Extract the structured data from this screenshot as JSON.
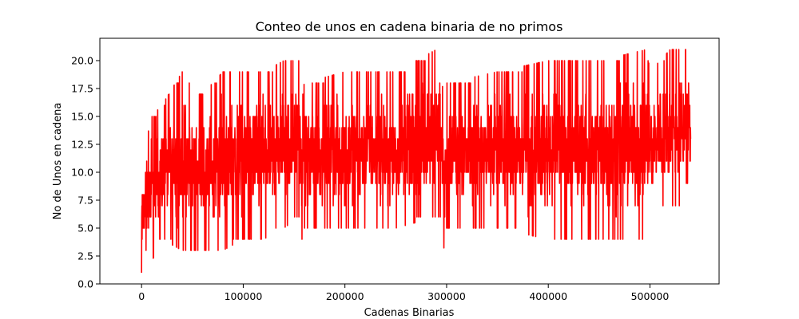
{
  "chart_data": {
    "type": "line",
    "title": "Conteo de unos en cadena binaria de no primos",
    "xlabel": "Cadenas Binarias",
    "ylabel": "No de Unos en cadena",
    "xlim": [
      -41000,
      568000
    ],
    "ylim": [
      0,
      22
    ],
    "x_ticks": [
      0,
      100000,
      200000,
      300000,
      400000,
      500000
    ],
    "y_ticks": [
      0.0,
      2.5,
      5.0,
      7.5,
      10.0,
      12.5,
      15.0,
      17.5,
      20.0
    ],
    "x_tick_labels": [
      "0",
      "100000",
      "200000",
      "300000",
      "400000",
      "500000"
    ],
    "y_tick_labels": [
      "0.0",
      "2.5",
      "5.0",
      "7.5",
      "10.0",
      "12.5",
      "15.0",
      "17.5",
      "20.0"
    ],
    "grid": false,
    "series": [
      {
        "color": "#ff0000",
        "x_range": [
          0,
          540000
        ],
        "envelope": {
          "x": [
            0,
            5000,
            10000,
            20000,
            40000,
            60000,
            80000,
            100000,
            120000,
            140000,
            155000,
            157000,
            160000,
            200000,
            250000,
            290000,
            294000,
            297000,
            300000,
            350000,
            400000,
            450000,
            497000,
            500000,
            520000,
            540000
          ],
          "max": [
            10,
            13,
            15,
            16,
            19,
            17,
            19,
            19,
            19,
            20,
            20,
            16,
            18,
            19,
            19,
            21,
            21,
            16,
            18,
            19,
            20,
            20,
            21,
            19,
            21,
            21
          ],
          "min": [
            1,
            3,
            2,
            4,
            3,
            3,
            3,
            4,
            4,
            5,
            6,
            3,
            5,
            5,
            5,
            6,
            6,
            3,
            5,
            5,
            4,
            4,
            4,
            6,
            7,
            7
          ]
        }
      }
    ]
  }
}
